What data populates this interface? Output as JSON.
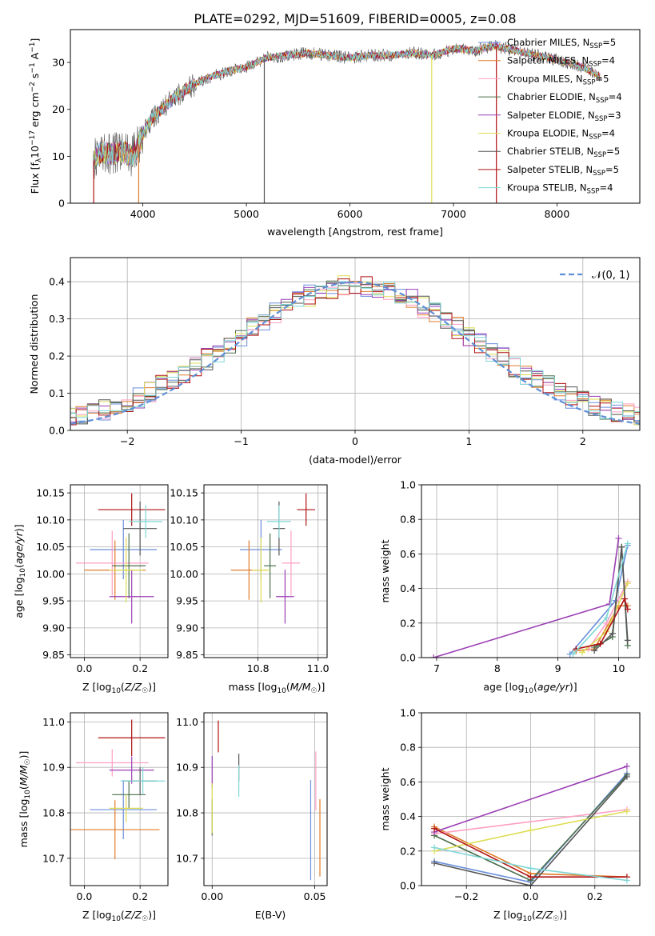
{
  "figure_title": "PLATE=0292, MJD=51609, FIBERID=0005, z=0.08",
  "model_colors": [
    "#6a8fdc",
    "#e07b2a",
    "#ff9fc4",
    "#4c6f4c",
    "#9b3fb5",
    "#dddd55",
    "#555555",
    "#b01010",
    "#7fd6d6"
  ],
  "chart_data": [
    {
      "type": "line",
      "title": "PLATE=0292, MJD=51609, FIBERID=0005, z=0.08",
      "xlabel": "wavelength [Angstrom, rest frame]",
      "ylabel_main": "Flux [f",
      "ylabel_sub": "λ",
      "ylabel_rest": "10",
      "ylabel_exp1": "−17",
      "ylabel_mid": " erg cm",
      "ylabel_exp2": "−2",
      "ylabel_mid2": " s",
      "ylabel_exp3": "−1",
      "ylabel_end": " A",
      "ylabel_exp4": "−1",
      "ylabel_close": "]",
      "xlim": [
        3300,
        8800
      ],
      "ylim": [
        0,
        37
      ],
      "xticks": [
        4000,
        5000,
        6000,
        7000,
        8000
      ],
      "yticks": [
        0,
        10,
        20,
        30
      ],
      "legend_position": "right",
      "continuum_knots": {
        "x": [
          3520,
          3600,
          3700,
          3800,
          3900,
          3960,
          4050,
          4200,
          4400,
          4600,
          4800,
          5000,
          5200,
          5400,
          5600,
          5800,
          6000,
          6200,
          6400,
          6600,
          6800,
          7000,
          7200,
          7400,
          7600,
          7800,
          8000,
          8200,
          8420
        ],
        "y": [
          9,
          11,
          10.5,
          11,
          10,
          12.5,
          17,
          20.5,
          24,
          26.5,
          28,
          29,
          31,
          31.5,
          32,
          31.5,
          31,
          31.5,
          31.5,
          32,
          31.5,
          33,
          32.5,
          33.5,
          32.5,
          31.5,
          30.5,
          29.5,
          27
        ]
      },
      "series": [
        {
          "name": "Chabrier MILES",
          "nssp": "5"
        },
        {
          "name": "Salpeter MILES",
          "nssp": "4"
        },
        {
          "name": "Kroupa MILES",
          "nssp": "5"
        },
        {
          "name": "Chabrier ELODIE",
          "nssp": "4"
        },
        {
          "name": "Salpeter ELODIE",
          "nssp": "3"
        },
        {
          "name": "Kroupa ELODIE",
          "nssp": "4"
        },
        {
          "name": "Chabrier STELIB",
          "nssp": "5"
        },
        {
          "name": "Salpeter STELIB",
          "nssp": "5"
        },
        {
          "name": "Kroupa STELIB",
          "nssp": "4"
        }
      ]
    },
    {
      "type": "histogram",
      "xlabel": "(data-model)/error",
      "ylabel": "Normed distribution",
      "xlim": [
        -2.5,
        2.5
      ],
      "ylim": [
        0,
        0.465
      ],
      "xticks": [
        -2,
        -1,
        0,
        1,
        2
      ],
      "yticks": [
        0.0,
        0.1,
        0.2,
        0.3,
        0.4
      ],
      "grid": true,
      "legend_label": "𝒩(0, 1)",
      "legend_position": "top-right",
      "bin_width": 0.1
    },
    {
      "type": "errorbar",
      "xlabel": "Z [log10(Z/Z☉)]",
      "ylabel": "age  [log10(age/yr)]",
      "xlim": [
        -0.05,
        0.3
      ],
      "ylim": [
        9.845,
        10.165
      ],
      "xticks": [
        0.0,
        0.2
      ],
      "yticks": [
        9.85,
        9.9,
        9.95,
        10.0,
        10.05,
        10.1,
        10.15
      ],
      "grid": true,
      "points": [
        {
          "x": 0.14,
          "xerr": 0.12,
          "y": 10.045,
          "yerr": 0.055
        },
        {
          "x": 0.11,
          "xerr": 0.11,
          "y": 10.007,
          "yerr": 0.055
        },
        {
          "x": 0.1,
          "xerr": 0.13,
          "y": 10.02,
          "yerr": 0.06
        },
        {
          "x": 0.16,
          "xerr": 0.06,
          "y": 10.015,
          "yerr": 0.06
        },
        {
          "x": 0.17,
          "xerr": 0.08,
          "y": 9.958,
          "yerr": 0.05
        },
        {
          "x": 0.15,
          "xerr": 0.06,
          "y": 10.007,
          "yerr": 0.06
        },
        {
          "x": 0.2,
          "xerr": 0.06,
          "y": 10.084,
          "yerr": 0.05
        },
        {
          "x": 0.17,
          "xerr": 0.12,
          "y": 10.119,
          "yerr": 0.03
        },
        {
          "x": 0.22,
          "xerr": 0.06,
          "y": 10.097,
          "yerr": 0.03
        }
      ]
    },
    {
      "type": "errorbar",
      "xlabel": "mass [log10(M/M☉)]",
      "xlim": [
        10.62,
        11.03
      ],
      "ylim": [
        9.845,
        10.165
      ],
      "xticks": [
        10.8,
        11.0
      ],
      "yticks": [
        9.85,
        9.9,
        9.95,
        10.0,
        10.05,
        10.1,
        10.15
      ],
      "grid": true,
      "points": [
        {
          "x": 10.81,
          "xerr": 0.07,
          "y": 10.045,
          "yerr": 0.055
        },
        {
          "x": 10.77,
          "xerr": 0.06,
          "y": 10.007,
          "yerr": 0.055
        },
        {
          "x": 10.91,
          "xerr": 0.03,
          "y": 10.02,
          "yerr": 0.06
        },
        {
          "x": 10.84,
          "xerr": 0.02,
          "y": 10.015,
          "yerr": 0.06
        },
        {
          "x": 10.89,
          "xerr": 0.03,
          "y": 9.958,
          "yerr": 0.05
        },
        {
          "x": 10.81,
          "xerr": 0.03,
          "y": 10.007,
          "yerr": 0.06
        },
        {
          "x": 10.87,
          "xerr": 0.02,
          "y": 10.084,
          "yerr": 0.05
        },
        {
          "x": 10.96,
          "xerr": 0.03,
          "y": 10.119,
          "yerr": 0.03
        },
        {
          "x": 10.87,
          "xerr": 0.04,
          "y": 10.097,
          "yerr": 0.03
        }
      ]
    },
    {
      "type": "line",
      "xlabel": "age  [log10(age/yr)]",
      "ylabel": "mass weight",
      "xlim": [
        6.75,
        10.35
      ],
      "ylim": [
        0,
        1.0
      ],
      "xticks": [
        7,
        8,
        9,
        10
      ],
      "yticks": [
        0.0,
        0.2,
        0.4,
        0.6,
        0.8,
        1.0
      ],
      "grid": true,
      "series": [
        {
          "x": [
            9.2,
            9.95,
            10.15
          ],
          "y": [
            0.02,
            0.33,
            0.65
          ]
        },
        {
          "x": [
            9.3,
            9.6,
            10.0,
            10.15
          ],
          "y": [
            0.04,
            0.05,
            0.3,
            0.3
          ]
        },
        {
          "x": [
            9.5,
            9.8,
            10.15
          ],
          "y": [
            0.05,
            0.2,
            0.44
          ]
        },
        {
          "x": [
            9.6,
            9.9,
            10.05,
            10.15
          ],
          "y": [
            0.06,
            0.12,
            0.64,
            0.07
          ]
        },
        {
          "x": [
            6.95,
            9.85,
            10.0
          ],
          "y": [
            0.0,
            0.31,
            0.69
          ]
        },
        {
          "x": [
            9.4,
            9.8,
            10.15
          ],
          "y": [
            0.03,
            0.15,
            0.43
          ]
        },
        {
          "x": [
            9.6,
            9.9,
            10.05,
            10.15
          ],
          "y": [
            0.04,
            0.14,
            0.64,
            0.1
          ]
        },
        {
          "x": [
            9.3,
            9.7,
            10.1,
            10.15
          ],
          "y": [
            0.05,
            0.08,
            0.34,
            0.28
          ]
        },
        {
          "x": [
            9.25,
            9.8,
            10.15
          ],
          "y": [
            0.02,
            0.23,
            0.66
          ]
        }
      ]
    },
    {
      "type": "errorbar",
      "xlabel": "Z [log10(Z/Z☉)]",
      "ylabel": "mass [log10(M/M☉)]",
      "xlim": [
        -0.05,
        0.3
      ],
      "ylim": [
        10.64,
        11.02
      ],
      "xticks": [
        0.0,
        0.2
      ],
      "yticks": [
        10.7,
        10.8,
        10.9,
        11.0
      ],
      "grid": true,
      "points": [
        {
          "x": 0.14,
          "xerr": 0.12,
          "y": 10.807,
          "yerr": 0.065
        },
        {
          "x": 0.11,
          "xerr": 0.16,
          "y": 10.763,
          "yerr": 0.065
        },
        {
          "x": 0.1,
          "xerr": 0.13,
          "y": 10.91,
          "yerr": 0.03
        },
        {
          "x": 0.16,
          "xerr": 0.06,
          "y": 10.84,
          "yerr": 0.03
        },
        {
          "x": 0.17,
          "xerr": 0.08,
          "y": 10.894,
          "yerr": 0.03
        },
        {
          "x": 0.15,
          "xerr": 0.06,
          "y": 10.81,
          "yerr": 0.03
        },
        {
          "x": 0.2,
          "xerr": 0.06,
          "y": 10.87,
          "yerr": 0.03
        },
        {
          "x": 0.17,
          "xerr": 0.12,
          "y": 10.965,
          "yerr": 0.04
        },
        {
          "x": 0.21,
          "xerr": 0.08,
          "y": 10.87,
          "yerr": 0.03
        }
      ]
    },
    {
      "type": "errorbar",
      "xlabel": "E(B-V)",
      "xlim": [
        -0.004,
        0.056
      ],
      "ylim": [
        10.64,
        11.02
      ],
      "xticks": [
        0.0,
        0.05
      ],
      "yticks": [
        10.7,
        10.8,
        10.9,
        11.0
      ],
      "grid": true,
      "points": [
        {
          "x": 0.048,
          "xerr": 0,
          "y": 10.762,
          "yerr": 0.11
        },
        {
          "x": 0.0525,
          "xerr": 0,
          "y": 10.745,
          "yerr": 0.085
        },
        {
          "x": 0.0505,
          "xerr": 0,
          "y": 10.87,
          "yerr": 0.065
        },
        {
          "x": 0.0,
          "xerr": 0,
          "y": 10.79,
          "yerr": 0.04
        },
        {
          "x": 0.0,
          "xerr": 0,
          "y": 10.89,
          "yerr": 0.035
        },
        {
          "x": 0.0,
          "xerr": 0,
          "y": 10.81,
          "yerr": 0.055
        },
        {
          "x": 0.013,
          "xerr": 0,
          "y": 10.9,
          "yerr": 0.03
        },
        {
          "x": 0.003,
          "xerr": 0,
          "y": 10.968,
          "yerr": 0.035
        },
        {
          "x": 0.013,
          "xerr": 0,
          "y": 10.87,
          "yerr": 0.035
        }
      ]
    },
    {
      "type": "line",
      "xlabel": "Z [log10(Z/Z☉)]",
      "ylabel": "mass weight",
      "xlim": [
        -0.34,
        0.34
      ],
      "ylim": [
        0,
        1.0
      ],
      "xticks": [
        -0.2,
        0.0,
        0.2
      ],
      "yticks": [
        0.0,
        0.2,
        0.4,
        0.6,
        0.8,
        1.0
      ],
      "grid": true,
      "series": [
        {
          "x": [
            -0.3,
            0.0,
            0.3
          ],
          "y": [
            0.14,
            0.02,
            0.65
          ]
        },
        {
          "x": [
            -0.3,
            0.0,
            0.3
          ],
          "y": [
            0.34,
            0.07,
            0.05
          ]
        },
        {
          "x": [
            -0.3,
            0.3
          ],
          "y": [
            0.3,
            0.44
          ]
        },
        {
          "x": [
            -0.3,
            0.0,
            0.3
          ],
          "y": [
            0.29,
            0.03,
            0.64
          ]
        },
        {
          "x": [
            -0.3,
            0.3
          ],
          "y": [
            0.31,
            0.69
          ]
        },
        {
          "x": [
            -0.3,
            0.0,
            0.3
          ],
          "y": [
            0.2,
            0.32,
            0.43
          ]
        },
        {
          "x": [
            -0.3,
            0.0,
            0.3
          ],
          "y": [
            0.13,
            0.0,
            0.63
          ]
        },
        {
          "x": [
            -0.3,
            0.0,
            0.3
          ],
          "y": [
            0.33,
            0.05,
            0.05
          ]
        },
        {
          "x": [
            -0.3,
            0.0,
            0.3
          ],
          "y": [
            0.22,
            0.1,
            0.03
          ]
        }
      ]
    }
  ]
}
